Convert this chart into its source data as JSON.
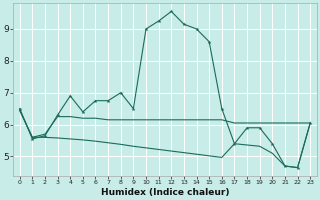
{
  "x": [
    0,
    1,
    2,
    3,
    4,
    5,
    6,
    7,
    8,
    9,
    10,
    11,
    12,
    13,
    14,
    15,
    16,
    17,
    18,
    19,
    20,
    21,
    22,
    23
  ],
  "line1": [
    6.5,
    5.55,
    5.65,
    6.3,
    6.9,
    6.4,
    6.75,
    6.75,
    7.0,
    6.5,
    9.0,
    9.25,
    9.55,
    9.15,
    9.0,
    8.6,
    6.5,
    5.4,
    5.9,
    5.9,
    5.4,
    4.7,
    4.65,
    6.05
  ],
  "line2": [
    6.45,
    5.6,
    5.7,
    6.25,
    6.25,
    6.2,
    6.2,
    6.15,
    6.15,
    6.15,
    6.15,
    6.15,
    6.15,
    6.15,
    6.15,
    6.15,
    6.15,
    6.05,
    6.05,
    6.05,
    6.05,
    6.05,
    6.05,
    6.05
  ],
  "line3": [
    6.45,
    5.6,
    5.6,
    5.58,
    5.55,
    5.52,
    5.48,
    5.43,
    5.38,
    5.32,
    5.27,
    5.22,
    5.17,
    5.12,
    5.07,
    5.02,
    4.97,
    5.4,
    5.36,
    5.32,
    5.1,
    4.7,
    4.65,
    6.05
  ],
  "bg_color": "#c8ece8",
  "grid_color": "#e8f8f8",
  "line_color": "#1a6b5a",
  "xlabel": "Humidex (Indice chaleur)",
  "xlabel_fontsize": 6.5,
  "ylabel_ticks": [
    5,
    6,
    7,
    8,
    9
  ],
  "xtick_labels": [
    "0",
    "1",
    "2",
    "3",
    "4",
    "5",
    "6",
    "7",
    "8",
    "9",
    "10",
    "11",
    "12",
    "13",
    "14",
    "15",
    "16",
    "17",
    "18",
    "19",
    "20",
    "21",
    "22",
    "23"
  ],
  "xlim": [
    -0.5,
    23.5
  ],
  "ylim": [
    4.4,
    9.8
  ]
}
